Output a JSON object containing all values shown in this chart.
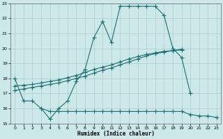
{
  "xlabel": "Humidex (Indice chaleur)",
  "bg_color": "#cce8e8",
  "grid_color": "#aacccc",
  "line_color": "#1a7070",
  "xlim": [
    -0.5,
    23.5
  ],
  "ylim": [
    15,
    23
  ],
  "yticks": [
    15,
    16,
    17,
    18,
    19,
    20,
    21,
    22,
    23
  ],
  "xticks": [
    0,
    1,
    2,
    3,
    4,
    5,
    6,
    7,
    8,
    9,
    10,
    11,
    12,
    13,
    14,
    15,
    16,
    17,
    18,
    19,
    20,
    21,
    22,
    23
  ],
  "line1_x": [
    0,
    1,
    2,
    3,
    4,
    5,
    6,
    7,
    8,
    9,
    10,
    11,
    12,
    13,
    14,
    15,
    16,
    17,
    18,
    19,
    20
  ],
  "line1_y": [
    18.0,
    16.5,
    16.5,
    16.0,
    15.3,
    16.0,
    16.5,
    17.8,
    18.6,
    20.7,
    21.8,
    20.4,
    22.8,
    22.8,
    22.8,
    22.8,
    22.8,
    22.2,
    20.0,
    19.4,
    17.0
  ],
  "line2_x": [
    0,
    1,
    2,
    3,
    4,
    5,
    6,
    7,
    8,
    9,
    10,
    11,
    12,
    13,
    14,
    15,
    16,
    17,
    18,
    19
  ],
  "line2_y": [
    17.2,
    17.3,
    17.4,
    17.5,
    17.6,
    17.7,
    17.85,
    18.0,
    18.15,
    18.35,
    18.55,
    18.7,
    18.9,
    19.1,
    19.3,
    19.5,
    19.65,
    19.75,
    19.85,
    19.95
  ],
  "line3_x": [
    0,
    1,
    2,
    3,
    4,
    5,
    6,
    7,
    8,
    9,
    10,
    11,
    12,
    13,
    14,
    15,
    16,
    17,
    18,
    19
  ],
  "line3_y": [
    17.5,
    17.55,
    17.6,
    17.7,
    17.8,
    17.9,
    18.05,
    18.2,
    18.4,
    18.6,
    18.75,
    18.9,
    19.1,
    19.3,
    19.45,
    19.6,
    19.7,
    19.8,
    19.85,
    19.9
  ],
  "line4_x": [
    3,
    4,
    5,
    6,
    7,
    8,
    9,
    10,
    11,
    12,
    13,
    14,
    15,
    16,
    17,
    18,
    19,
    20,
    21,
    22,
    23
  ],
  "line4_y": [
    16.0,
    15.8,
    15.8,
    15.8,
    15.8,
    15.8,
    15.8,
    15.8,
    15.8,
    15.8,
    15.8,
    15.8,
    15.8,
    15.8,
    15.8,
    15.8,
    15.8,
    15.6,
    15.5,
    15.5,
    15.4
  ]
}
